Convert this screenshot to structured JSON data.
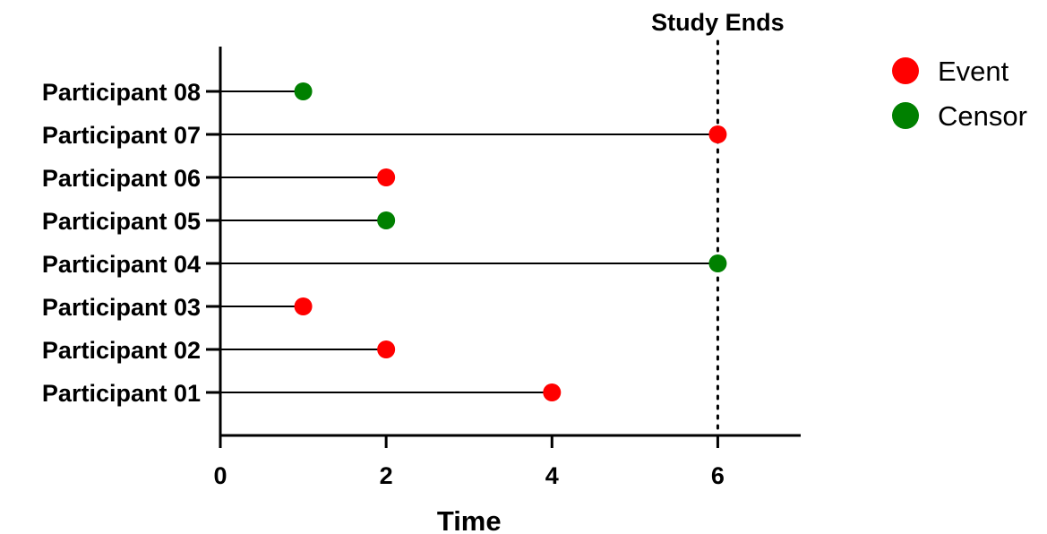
{
  "chart_data": {
    "type": "scatter",
    "xlabel": "Time",
    "xlim": [
      0,
      7
    ],
    "xticks": [
      0,
      2,
      4,
      6
    ],
    "grid": false,
    "legend_position": "top-right",
    "categories": [
      "Participant 01",
      "Participant 02",
      "Participant 03",
      "Participant 04",
      "Participant 05",
      "Participant 06",
      "Participant 07",
      "Participant 08"
    ],
    "participants": [
      {
        "label": "Participant 01",
        "time": 4,
        "status": "Event"
      },
      {
        "label": "Participant 02",
        "time": 2,
        "status": "Event"
      },
      {
        "label": "Participant 03",
        "time": 1,
        "status": "Event"
      },
      {
        "label": "Participant 04",
        "time": 6,
        "status": "Censor"
      },
      {
        "label": "Participant 05",
        "time": 2,
        "status": "Censor"
      },
      {
        "label": "Participant 06",
        "time": 2,
        "status": "Event"
      },
      {
        "label": "Participant 07",
        "time": 6,
        "status": "Event"
      },
      {
        "label": "Participant 08",
        "time": 1,
        "status": "Censor"
      }
    ],
    "reference_line": {
      "x": 6,
      "label": "Study Ends",
      "style": "dotted"
    },
    "legend": [
      {
        "name": "Event",
        "color": "#ff0000"
      },
      {
        "name": "Censor",
        "color": "#008000"
      }
    ]
  }
}
